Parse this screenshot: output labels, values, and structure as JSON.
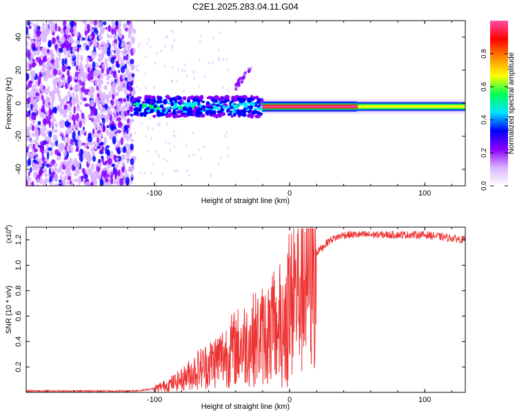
{
  "title": "C2E1.2025.283.04.11.G04",
  "chart_data": [
    {
      "type": "heatmap",
      "name": "spectrogram",
      "xlabel": "Height of straight line (km)",
      "ylabel": "Frequency (Hz)",
      "xlim": [
        -195,
        130
      ],
      "ylim": [
        -50,
        50
      ],
      "xticks": [
        -100,
        0,
        100
      ],
      "yticks": [
        -40,
        -20,
        0,
        20,
        40
      ],
      "colorbar": {
        "label": "Normalized spectral amplitude",
        "range": [
          0,
          1
        ],
        "ticks": [
          "0.0",
          "0.2",
          "0.4",
          "0.6",
          "0.8"
        ],
        "tick_values": [
          0,
          0.2,
          0.4,
          0.6,
          0.8
        ],
        "colors": [
          "#ffffff",
          "#d9b3ff",
          "#8800ff",
          "#0000ff",
          "#00e5ff",
          "#00ff55",
          "#ffff00",
          "#ff8800",
          "#ff0000",
          "#ff4da6"
        ]
      },
      "regions": [
        {
          "label": "broadband noise",
          "x_range": [
            -195,
            -115
          ],
          "freq_range": [
            -50,
            50
          ],
          "amplitude": 0.1
        },
        {
          "label": "onset",
          "x_range": [
            -115,
            -20
          ],
          "freq_center": -2,
          "freq_halfwidth": 6,
          "amplitude": 0.4
        },
        {
          "label": "drift line",
          "x_range": [
            -40,
            -28
          ],
          "freq_range": [
            10,
            22
          ],
          "amplitude": 0.12
        },
        {
          "label": "strong carrier",
          "x_range": [
            -20,
            50
          ],
          "freq_center": -2,
          "freq_halfwidth": 1.5,
          "amplitude": 1.0
        },
        {
          "label": "carrier tail",
          "x_range": [
            50,
            130
          ],
          "freq_center": -2,
          "freq_halfwidth": 2.5,
          "amplitude": 0.5
        }
      ]
    },
    {
      "type": "line",
      "name": "snr",
      "xlabel": "Height of straight line (km)",
      "ylabel": "SNR (10 * v/v)",
      "multiplier_label": "(x10",
      "multiplier_exp": "4",
      "multiplier_close": ")",
      "xlim": [
        -195,
        130
      ],
      "ylim": [
        0,
        1.3
      ],
      "xticks": [
        -100,
        0,
        100
      ],
      "yticks": [
        0.2,
        0.4,
        0.6,
        0.8,
        1.0,
        1.2
      ],
      "color": "#ee3333",
      "series": [
        {
          "name": "SNR",
          "x": [
            -195,
            -120,
            -110,
            -100,
            -90,
            -80,
            -70,
            -60,
            -50,
            -40,
            -30,
            -20,
            -10,
            0,
            5,
            10,
            15,
            20,
            30,
            40,
            50,
            60,
            80,
            100,
            115,
            130
          ],
          "values": [
            0.01,
            0.01,
            0.015,
            0.03,
            0.06,
            0.1,
            0.17,
            0.22,
            0.28,
            0.35,
            0.4,
            0.45,
            0.5,
            0.65,
            0.8,
            0.92,
            1.02,
            1.1,
            1.2,
            1.24,
            1.24,
            1.24,
            1.24,
            1.24,
            1.22,
            1.2
          ]
        }
      ]
    }
  ]
}
